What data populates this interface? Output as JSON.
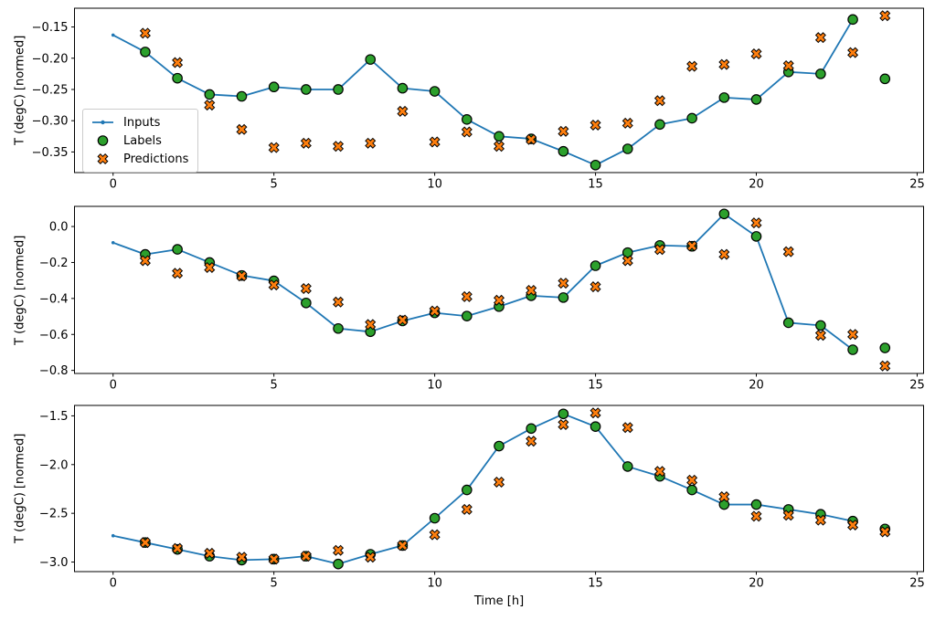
{
  "figure": {
    "background": "#ffffff",
    "xlabel": "Time [h]",
    "ylabel": "T (degC) [normed]",
    "marker_edge_color": "#000000",
    "spine_color": "#000000",
    "legend": {
      "position": "upper-left-area of top subplot",
      "items": [
        {
          "label": "Inputs",
          "type": "line-with-dot",
          "color": "#1f77b4"
        },
        {
          "label": "Labels",
          "type": "circle",
          "color": "#2ca02c"
        },
        {
          "label": "Predictions",
          "type": "x-marker",
          "color": "#ff7f0e"
        }
      ]
    }
  },
  "chart_data": [
    {
      "type": "line",
      "subplot": "top",
      "ylabel": "T (degC) [normed]",
      "xlim": [
        -1.2,
        25.2
      ],
      "ylim": [
        -0.383,
        -0.12
      ],
      "xticks": [
        0,
        5,
        10,
        15,
        20,
        25
      ],
      "xtick_labels": [
        "0",
        "5",
        "10",
        "15",
        "20",
        "25"
      ],
      "yticks": [
        -0.15,
        -0.2,
        -0.25,
        -0.3,
        -0.35
      ],
      "ytick_labels": [
        "−0.15",
        "−0.20",
        "−0.25",
        "−0.30",
        "−0.35"
      ],
      "grid": false,
      "series": [
        {
          "name": "Inputs",
          "type": "line",
          "marker": "dot",
          "color": "#1f77b4",
          "x": [
            0,
            1,
            2,
            3,
            4,
            5,
            6,
            7,
            8,
            9,
            10,
            11,
            12,
            13,
            14,
            15,
            16,
            17,
            18,
            19,
            20,
            21,
            22,
            23
          ],
          "y": [
            -0.163,
            -0.19,
            -0.232,
            -0.258,
            -0.261,
            -0.246,
            -0.25,
            -0.25,
            -0.202,
            -0.248,
            -0.253,
            -0.298,
            -0.325,
            -0.329,
            -0.349,
            -0.371,
            -0.345,
            -0.306,
            -0.296,
            -0.263,
            -0.266,
            -0.222,
            -0.225,
            -0.138
          ]
        },
        {
          "name": "Labels",
          "type": "scatter",
          "marker": "circle",
          "color": "#2ca02c",
          "x": [
            1,
            2,
            3,
            4,
            5,
            6,
            7,
            8,
            9,
            10,
            11,
            12,
            13,
            14,
            15,
            16,
            17,
            18,
            19,
            20,
            21,
            22,
            23,
            24
          ],
          "y": [
            -0.19,
            -0.232,
            -0.258,
            -0.261,
            -0.246,
            -0.25,
            -0.25,
            -0.202,
            -0.248,
            -0.253,
            -0.298,
            -0.325,
            -0.329,
            -0.349,
            -0.371,
            -0.345,
            -0.306,
            -0.296,
            -0.263,
            -0.266,
            -0.222,
            -0.225,
            -0.138,
            -0.233
          ]
        },
        {
          "name": "Predictions",
          "type": "scatter",
          "marker": "X",
          "color": "#ff7f0e",
          "x": [
            1,
            2,
            3,
            4,
            5,
            6,
            7,
            8,
            9,
            10,
            11,
            12,
            13,
            14,
            15,
            16,
            17,
            18,
            19,
            20,
            21,
            22,
            23,
            24
          ],
          "y": [
            -0.16,
            -0.207,
            -0.275,
            -0.314,
            -0.343,
            -0.336,
            -0.341,
            -0.336,
            -0.285,
            -0.334,
            -0.318,
            -0.341,
            -0.33,
            -0.317,
            -0.307,
            -0.304,
            -0.268,
            -0.213,
            -0.21,
            -0.193,
            -0.212,
            -0.167,
            -0.191,
            -0.132
          ]
        }
      ]
    },
    {
      "type": "line",
      "subplot": "middle",
      "ylabel": "T (degC) [normed]",
      "xlim": [
        -1.2,
        25.2
      ],
      "ylim": [
        -0.817,
        0.112
      ],
      "xticks": [
        0,
        5,
        10,
        15,
        20,
        25
      ],
      "xtick_labels": [
        "0",
        "5",
        "10",
        "15",
        "20",
        "25"
      ],
      "yticks": [
        0.0,
        -0.2,
        -0.4,
        -0.6,
        -0.8
      ],
      "ytick_labels": [
        "0.0",
        "−0.2",
        "−0.4",
        "−0.6",
        "−0.8"
      ],
      "grid": false,
      "series": [
        {
          "name": "Inputs",
          "type": "line",
          "marker": "dot",
          "color": "#1f77b4",
          "x": [
            0,
            1,
            2,
            3,
            4,
            5,
            6,
            7,
            8,
            9,
            10,
            11,
            12,
            13,
            14,
            15,
            16,
            17,
            18,
            19,
            20,
            21,
            22,
            23
          ],
          "y": [
            -0.09,
            -0.155,
            -0.127,
            -0.2,
            -0.272,
            -0.302,
            -0.425,
            -0.567,
            -0.585,
            -0.525,
            -0.48,
            -0.498,
            -0.445,
            -0.385,
            -0.395,
            -0.218,
            -0.145,
            -0.105,
            -0.11,
            0.07,
            -0.055,
            -0.535,
            -0.55,
            -0.685
          ]
        },
        {
          "name": "Labels",
          "type": "scatter",
          "marker": "circle",
          "color": "#2ca02c",
          "x": [
            1,
            2,
            3,
            4,
            5,
            6,
            7,
            8,
            9,
            10,
            11,
            12,
            13,
            14,
            15,
            16,
            17,
            18,
            19,
            20,
            21,
            22,
            23,
            24
          ],
          "y": [
            -0.155,
            -0.127,
            -0.2,
            -0.272,
            -0.302,
            -0.425,
            -0.567,
            -0.585,
            -0.525,
            -0.48,
            -0.498,
            -0.445,
            -0.385,
            -0.395,
            -0.218,
            -0.145,
            -0.105,
            -0.11,
            0.07,
            -0.055,
            -0.535,
            -0.55,
            -0.685,
            -0.675
          ]
        },
        {
          "name": "Predictions",
          "type": "scatter",
          "marker": "X",
          "color": "#ff7f0e",
          "x": [
            1,
            2,
            3,
            4,
            5,
            6,
            7,
            8,
            9,
            10,
            11,
            12,
            13,
            14,
            15,
            16,
            17,
            18,
            19,
            20,
            21,
            22,
            23,
            24
          ],
          "y": [
            -0.19,
            -0.26,
            -0.228,
            -0.275,
            -0.325,
            -0.345,
            -0.42,
            -0.545,
            -0.52,
            -0.47,
            -0.39,
            -0.41,
            -0.355,
            -0.315,
            -0.335,
            -0.19,
            -0.128,
            -0.108,
            -0.155,
            0.02,
            -0.14,
            -0.605,
            -0.6,
            -0.775
          ]
        }
      ]
    },
    {
      "type": "line",
      "subplot": "bottom",
      "xlabel": "Time [h]",
      "ylabel": "T (degC) [normed]",
      "xlim": [
        -1.2,
        25.2
      ],
      "ylim": [
        -3.098,
        -1.393
      ],
      "xticks": [
        0,
        5,
        10,
        15,
        20,
        25
      ],
      "xtick_labels": [
        "0",
        "5",
        "10",
        "15",
        "20",
        "25"
      ],
      "yticks": [
        -1.5,
        -2.0,
        -2.5,
        -3.0
      ],
      "ytick_labels": [
        "−1.5",
        "−2.0",
        "−2.5",
        "−3.0"
      ],
      "grid": false,
      "series": [
        {
          "name": "Inputs",
          "type": "line",
          "marker": "dot",
          "color": "#1f77b4",
          "x": [
            0,
            1,
            2,
            3,
            4,
            5,
            6,
            7,
            8,
            9,
            10,
            11,
            12,
            13,
            14,
            15,
            16,
            17,
            18,
            19,
            20,
            21,
            22,
            23
          ],
          "y": [
            -2.73,
            -2.8,
            -2.87,
            -2.94,
            -2.98,
            -2.97,
            -2.94,
            -3.02,
            -2.92,
            -2.83,
            -2.55,
            -2.26,
            -1.81,
            -1.63,
            -1.48,
            -1.61,
            -2.02,
            -2.12,
            -2.26,
            -2.41,
            -2.41,
            -2.46,
            -2.51,
            -2.58
          ]
        },
        {
          "name": "Labels",
          "type": "scatter",
          "marker": "circle",
          "color": "#2ca02c",
          "x": [
            1,
            2,
            3,
            4,
            5,
            6,
            7,
            8,
            9,
            10,
            11,
            12,
            13,
            14,
            15,
            16,
            17,
            18,
            19,
            20,
            21,
            22,
            23,
            24
          ],
          "y": [
            -2.8,
            -2.87,
            -2.94,
            -2.98,
            -2.97,
            -2.94,
            -3.02,
            -2.92,
            -2.83,
            -2.55,
            -2.26,
            -1.81,
            -1.63,
            -1.48,
            -1.61,
            -2.02,
            -2.12,
            -2.26,
            -2.41,
            -2.41,
            -2.46,
            -2.51,
            -2.58,
            -2.66
          ]
        },
        {
          "name": "Predictions",
          "type": "scatter",
          "marker": "X",
          "color": "#ff7f0e",
          "x": [
            1,
            2,
            3,
            4,
            5,
            6,
            7,
            8,
            9,
            10,
            11,
            12,
            13,
            14,
            15,
            16,
            17,
            18,
            19,
            20,
            21,
            22,
            23,
            24
          ],
          "y": [
            -2.8,
            -2.86,
            -2.91,
            -2.95,
            -2.97,
            -2.94,
            -2.88,
            -2.95,
            -2.83,
            -2.72,
            -2.46,
            -2.18,
            -1.76,
            -1.59,
            -1.47,
            -1.62,
            -2.07,
            -2.16,
            -2.33,
            -2.53,
            -2.52,
            -2.57,
            -2.62,
            -2.69
          ]
        }
      ]
    }
  ]
}
